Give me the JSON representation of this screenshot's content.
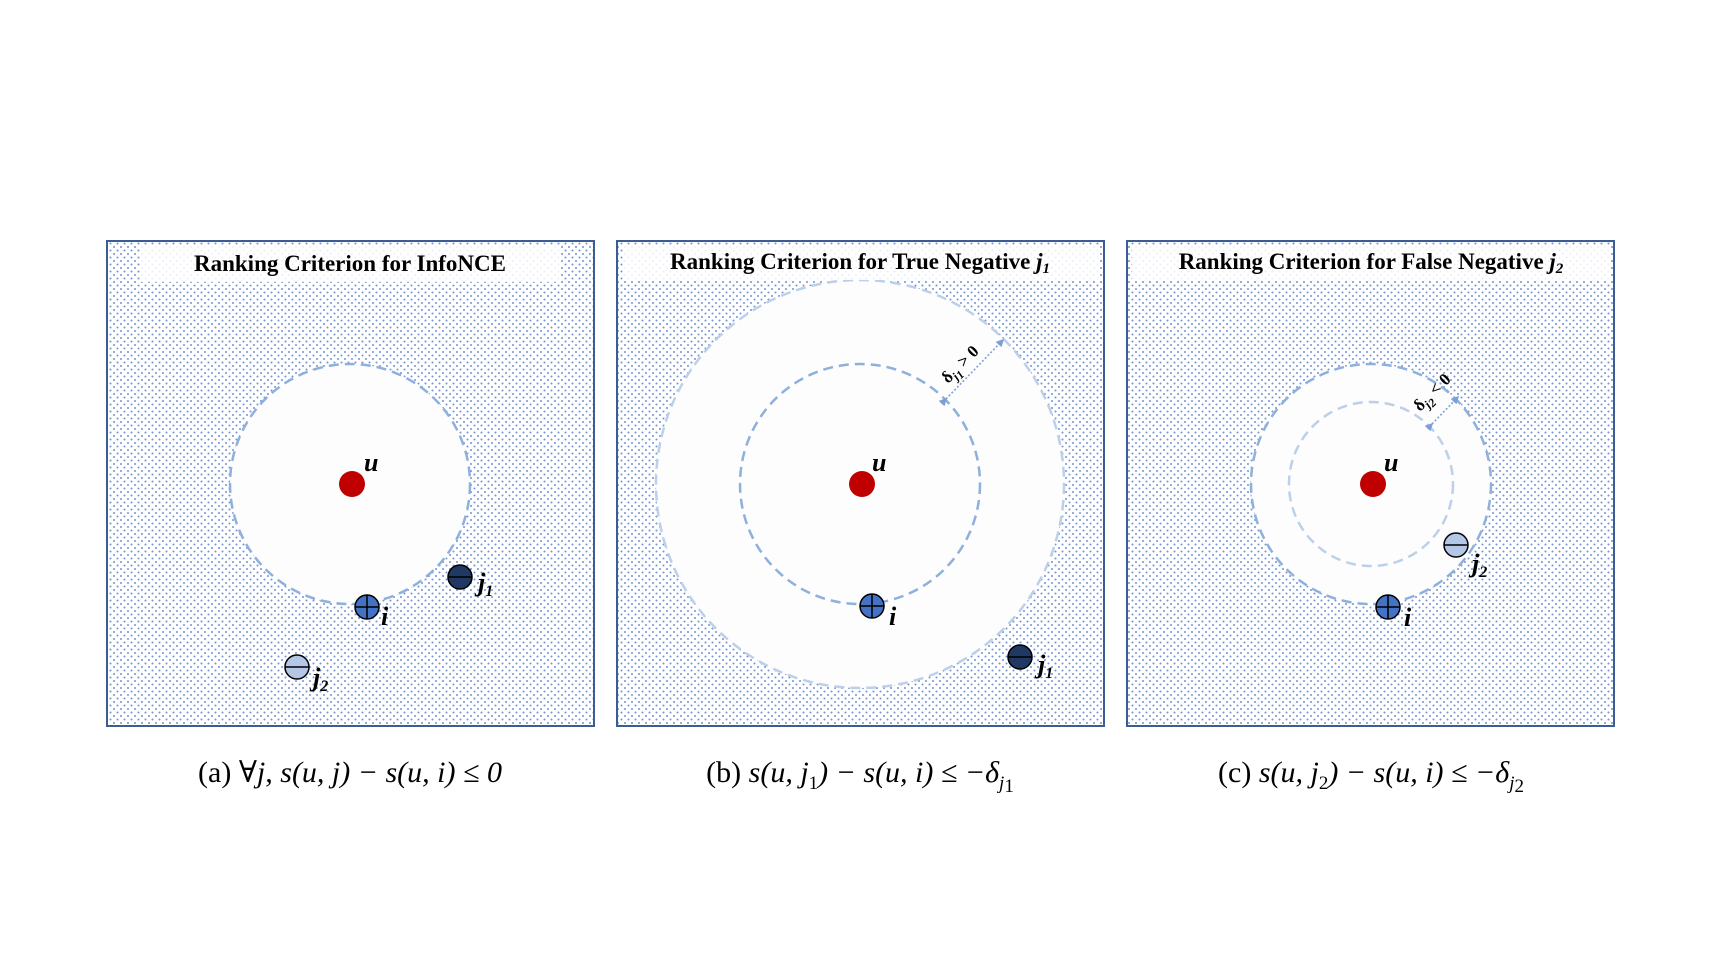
{
  "panels": [
    {
      "title": "Ranking Criterion for InfoNCE",
      "title_var": "",
      "title_var_sub": "",
      "labels": {
        "u": "u",
        "i": "i",
        "j1": "j",
        "j1_sub": "1",
        "j2": "j",
        "j2_sub": "2"
      },
      "caption": {
        "prefix": "(a) ",
        "math": "∀j, s(u, j) − s(u, i) ≤ 0"
      }
    },
    {
      "title": "Ranking Criterion for True Negative ",
      "title_var": "j",
      "title_var_sub": "1",
      "labels": {
        "u": "u",
        "i": "i",
        "j1": "j",
        "j1_sub": "1"
      },
      "delta": {
        "sym": "δ",
        "sub_var": "j",
        "sub_idx": "1",
        "rel": " > 0"
      },
      "caption": {
        "prefix": "(b) ",
        "math_a": "s(u, j",
        "math_sub": "1",
        "math_b": ") − s(u, i) ≤ −δ",
        "math_sub2": "j",
        "math_sub2_idx": "1"
      }
    },
    {
      "title": "Ranking Criterion for False Negative ",
      "title_var": "j",
      "title_var_sub": "2",
      "labels": {
        "u": "u",
        "i": "i",
        "j2": "j",
        "j2_sub": "2"
      },
      "delta": {
        "sym": "δ",
        "sub_var": "j",
        "sub_idx": "2",
        "rel": " < 0"
      },
      "caption": {
        "prefix": "(c) ",
        "math_a": "s(u, j",
        "math_sub": "2",
        "math_b": ") − s(u, i) ≤ −δ",
        "math_sub2": "j",
        "math_sub2_idx": "2"
      }
    }
  ],
  "colors": {
    "user": "#c00000",
    "positive": "#4472c4",
    "true_negative": "#1f3864",
    "false_negative": "#b4c7e7",
    "frame": "#3b5d93",
    "dots": "#6f8fcf",
    "ring_inner": "#8eb0dc",
    "ring_outer": "#bcd0ea"
  }
}
